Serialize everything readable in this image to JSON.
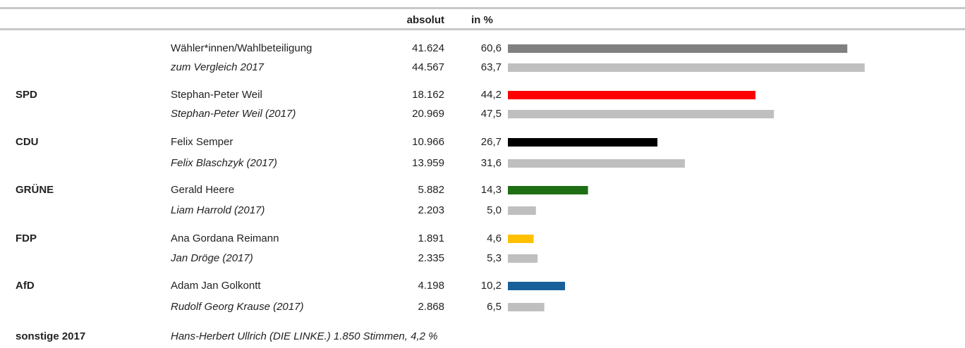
{
  "header": {
    "absolut": "absolut",
    "percent": "in %"
  },
  "rows": [
    {
      "candidate": "Wähler*innen/Wahlbeteiligung",
      "absolut": "41.624",
      "percent": 60.6,
      "percent_label": "60,6",
      "color": "#808080"
    },
    {
      "candidate": "zum Vergleich 2017",
      "absolut": "44.567",
      "percent": 63.7,
      "percent_label": "63,7",
      "color": "#bfbfbf"
    },
    {
      "party": "SPD",
      "candidate": "Stephan-Peter Weil",
      "absolut": "18.162",
      "percent": 44.2,
      "percent_label": "44,2",
      "color": "#ff0000"
    },
    {
      "candidate": "Stephan-Peter Weil (2017)",
      "absolut": "20.969",
      "percent": 47.5,
      "percent_label": "47,5",
      "color": "#bfbfbf"
    },
    {
      "party": "CDU",
      "candidate": "Felix Semper",
      "absolut": "10.966",
      "percent": 26.7,
      "percent_label": "26,7",
      "color": "#000000"
    },
    {
      "candidate": "Felix Blaschzyk (2017)",
      "absolut": "13.959",
      "percent": 31.6,
      "percent_label": "31,6",
      "color": "#bfbfbf"
    },
    {
      "party": "GRÜNE",
      "candidate": "Gerald Heere",
      "absolut": "5.882",
      "percent": 14.3,
      "percent_label": "14,3",
      "color": "#1e6e14"
    },
    {
      "candidate": "Liam Harrold (2017)",
      "absolut": "2.203",
      "percent": 5.0,
      "percent_label": "5,0",
      "color": "#bfbfbf"
    },
    {
      "party": "FDP",
      "candidate": "Ana Gordana Reimann",
      "absolut": "1.891",
      "percent": 4.6,
      "percent_label": "4,6",
      "color": "#ffc000"
    },
    {
      "candidate": "Jan Dröge (2017)",
      "absolut": "2.335",
      "percent": 5.3,
      "percent_label": "5,3",
      "color": "#bfbfbf"
    },
    {
      "party": "AfD",
      "candidate": "Adam Jan Golkontt",
      "absolut": "4.198",
      "percent": 10.2,
      "percent_label": "10,2",
      "color": "#17609a"
    },
    {
      "candidate": "Rudolf Georg Krause (2017)",
      "absolut": "2.868",
      "percent": 6.5,
      "percent_label": "6,5",
      "color": "#bfbfbf"
    }
  ],
  "footer": {
    "party": "sonstige 2017",
    "text": "Hans-Herbert Ullrich (DIE LINKE.) 1.850 Stimmen, 4,2 %"
  }
}
